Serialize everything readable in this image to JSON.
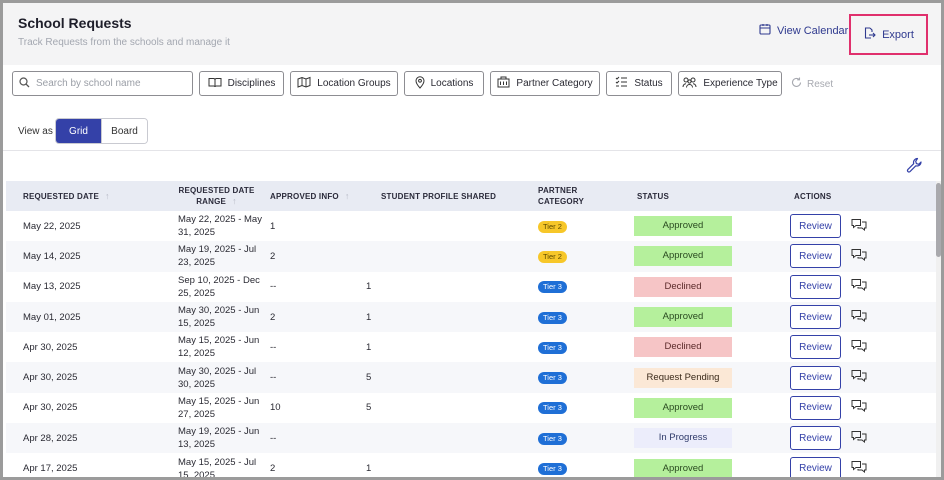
{
  "header": {
    "title": "School Requests",
    "subtitle": "Track Requests from the schools and manage it",
    "view_calendar_label": "View Calendar",
    "export_label": "Export"
  },
  "filters": {
    "search_placeholder": "Search by school name",
    "search_value": "",
    "disciplines": "Disciplines",
    "location_groups": "Location Groups",
    "locations": "Locations",
    "partner_category": "Partner Category",
    "status": "Status",
    "experience_type": "Experience Type",
    "reset": "Reset"
  },
  "view_as": {
    "label": "View as",
    "grid": "Grid",
    "board": "Board",
    "selected": "Grid"
  },
  "table": {
    "columns": {
      "requested_date": "REQUESTED DATE",
      "requested_date_range": "REQUESTED DATE RANGE",
      "approved_info": "APPROVED INFO",
      "student_profile_shared": "STUDENT PROFILE SHARED",
      "partner_category": "PARTNER CATEGORY",
      "status": "STATUS",
      "actions": "ACTIONS"
    },
    "review_label": "Review",
    "rows": [
      {
        "date": "May 22, 2025",
        "range": "May 22, 2025 - May 31, 2025",
        "approved": "1",
        "profile": "",
        "tier": "Tier 2",
        "status": "Approved"
      },
      {
        "date": "May 14, 2025",
        "range": "May 19, 2025 - Jul 23, 2025",
        "approved": "2",
        "profile": "",
        "tier": "Tier 2",
        "status": "Approved"
      },
      {
        "date": "May 13, 2025",
        "range": "Sep 10, 2025 - Dec 25, 2025",
        "approved": "--",
        "profile": "1",
        "tier": "Tier 3",
        "status": "Declined"
      },
      {
        "date": "May 01, 2025",
        "range": "May 30, 2025 - Jun 15, 2025",
        "approved": "2",
        "profile": "1",
        "tier": "Tier 3",
        "status": "Approved"
      },
      {
        "date": "Apr 30, 2025",
        "range": "May 15, 2025 - Jun 12, 2025",
        "approved": "--",
        "profile": "1",
        "tier": "Tier 3",
        "status": "Declined"
      },
      {
        "date": "Apr 30, 2025",
        "range": "May 30, 2025 - Jul 30, 2025",
        "approved": "--",
        "profile": "5",
        "tier": "Tier 3",
        "status": "Request Pending"
      },
      {
        "date": "Apr 30, 2025",
        "range": "May 15, 2025 - Jun 27, 2025",
        "approved": "10",
        "profile": "5",
        "tier": "Tier 3",
        "status": "Approved"
      },
      {
        "date": "Apr 28, 2025",
        "range": "May 19, 2025 - Jun 13, 2025",
        "approved": "--",
        "profile": "",
        "tier": "Tier 3",
        "status": "In Progress"
      },
      {
        "date": "Apr 17, 2025",
        "range": "May 15, 2025 - Jul 15, 2025",
        "approved": "2",
        "profile": "1",
        "tier": "Tier 3",
        "status": "Approved"
      }
    ]
  },
  "colors": {
    "accent": "#3441a8",
    "export_highlight": "#e0306d",
    "approved": "#b5f09c",
    "declined": "#f6c5c6",
    "pending": "#fbe8d6",
    "in_progress": "#ecedfb",
    "tier2": "#f7c729",
    "tier3": "#1f6fd6"
  },
  "icons": {
    "calendar": "calendar-icon",
    "export": "export-icon",
    "search": "search-icon",
    "book": "book-icon",
    "location_group": "location-group-icon",
    "location_pin": "location-pin-icon",
    "building": "building-icon",
    "status_list": "list-check-icon",
    "people": "people-icon",
    "reset": "reset-icon",
    "wrench": "wrench-icon",
    "chat": "chat-icon",
    "sort": "sort-arrow-icon"
  }
}
